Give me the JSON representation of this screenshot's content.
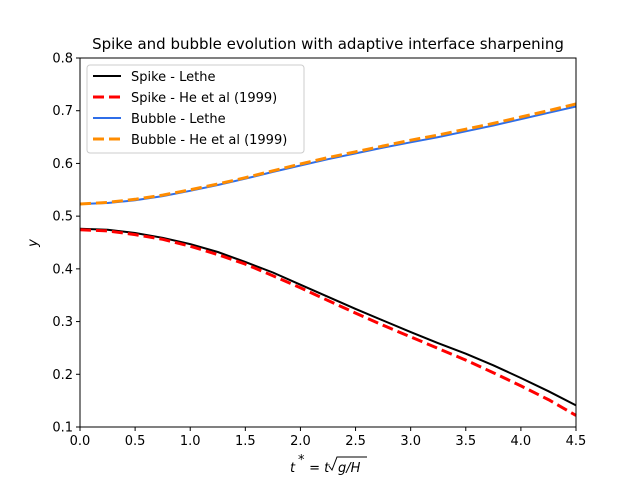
{
  "chart_data": {
    "type": "line",
    "title": "Spike and bubble evolution with adaptive interface sharpening",
    "xlabel_prefix": "t",
    "xlabel_sup": "*",
    "xlabel_mid": " = t",
    "xlabel_sqrt": "g/H",
    "ylabel": "y",
    "xlim": [
      0.0,
      4.5
    ],
    "ylim": [
      0.1,
      0.8
    ],
    "x_ticks": [
      "0.0",
      "0.5",
      "1.0",
      "1.5",
      "2.0",
      "2.5",
      "3.0",
      "3.5",
      "4.0",
      "4.5"
    ],
    "y_ticks": [
      "0.1",
      "0.2",
      "0.3",
      "0.4",
      "0.5",
      "0.6",
      "0.7",
      "0.8"
    ],
    "grid": false,
    "legend_position": "top-left",
    "series": [
      {
        "name": "Spike - Lethe",
        "color": "#000000",
        "dash": "solid",
        "x": [
          0.0,
          0.25,
          0.5,
          0.75,
          1.0,
          1.25,
          1.5,
          1.75,
          2.0,
          2.25,
          2.5,
          2.75,
          3.0,
          3.25,
          3.5,
          3.75,
          4.0,
          4.25,
          4.5
        ],
        "y": [
          0.476,
          0.474,
          0.468,
          0.459,
          0.447,
          0.432,
          0.413,
          0.393,
          0.37,
          0.347,
          0.324,
          0.302,
          0.28,
          0.259,
          0.239,
          0.217,
          0.193,
          0.168,
          0.141
        ]
      },
      {
        "name": "Spike - He et al (1999)",
        "color": "#ff0000",
        "dash": "dashed",
        "x": [
          0.0,
          0.25,
          0.5,
          0.75,
          1.0,
          1.25,
          1.5,
          1.75,
          2.0,
          2.25,
          2.5,
          2.75,
          3.0,
          3.25,
          3.5,
          3.75,
          4.0,
          4.25,
          4.5
        ],
        "y": [
          0.474,
          0.472,
          0.465,
          0.456,
          0.443,
          0.427,
          0.409,
          0.387,
          0.364,
          0.34,
          0.316,
          0.293,
          0.271,
          0.249,
          0.227,
          0.203,
          0.178,
          0.152,
          0.122
        ]
      },
      {
        "name": "Bubble - Lethe",
        "color": "#2f6ee8",
        "dash": "solid",
        "x": [
          0.0,
          0.25,
          0.5,
          0.75,
          1.0,
          1.25,
          1.5,
          1.75,
          2.0,
          2.25,
          2.5,
          2.75,
          3.0,
          3.25,
          3.5,
          3.75,
          4.0,
          4.25,
          4.5
        ],
        "y": [
          0.523,
          0.525,
          0.53,
          0.538,
          0.548,
          0.559,
          0.571,
          0.584,
          0.596,
          0.608,
          0.619,
          0.63,
          0.64,
          0.65,
          0.661,
          0.672,
          0.684,
          0.696,
          0.708
        ]
      },
      {
        "name": "Bubble - He et al (1999)",
        "color": "#ff8c00",
        "dash": "dashed",
        "x": [
          0.0,
          0.25,
          0.5,
          0.75,
          1.0,
          1.25,
          1.5,
          1.75,
          2.0,
          2.25,
          2.5,
          2.75,
          3.0,
          3.25,
          3.5,
          3.75,
          4.0,
          4.25,
          4.5
        ],
        "y": [
          0.523,
          0.526,
          0.532,
          0.54,
          0.55,
          0.561,
          0.573,
          0.586,
          0.599,
          0.611,
          0.622,
          0.633,
          0.644,
          0.654,
          0.665,
          0.676,
          0.688,
          0.7,
          0.713
        ]
      }
    ]
  }
}
